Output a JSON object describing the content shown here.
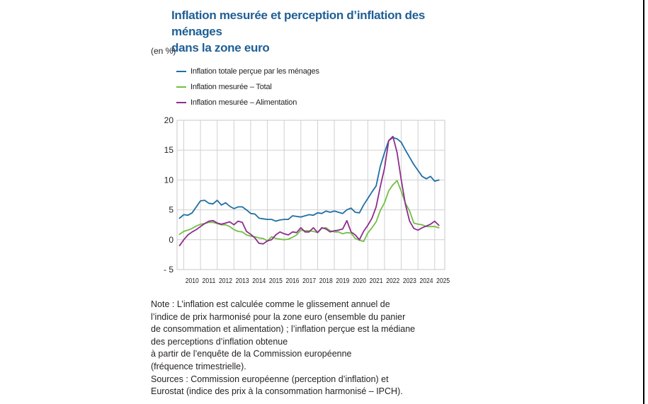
{
  "title_lines": [
    "Inflation mesurée et perception d’inflation des ménages",
    "dans la zone euro"
  ],
  "unit": "(en %)",
  "note_lines": [
    "Note : L’inflation est calculée comme le glissement annuel de",
    "l’indice de prix harmonisé pour la zone euro (ensemble du panier",
    "de consommation et alimentation) ; l’inflation perçue est la médiane",
    "des perceptions d’inflation obtenue",
    "à partir de l’enquête de la Commission européenne",
    "(fréquence trimestrielle).",
    "Sources : Commission européenne (perception d’inflation) et",
    "Eurostat (indice des prix à la consommation harmonisé – IPCH)."
  ],
  "chart_data": {
    "type": "line",
    "ylim": [
      -5,
      20
    ],
    "yticks": [
      20,
      15,
      10,
      5,
      0,
      -5
    ],
    "ytick_labels": [
      "20",
      "15",
      "10",
      "5",
      "0",
      "- 5"
    ],
    "xlim": [
      2009.6,
      2025.6
    ],
    "xtick_labels": [
      "2010",
      "2011",
      "2012",
      "2013",
      "2014",
      "2015",
      "2016",
      "2017",
      "2018",
      "2019",
      "2020",
      "2021",
      "2022",
      "2023",
      "2024",
      "2025"
    ],
    "grid": true,
    "legend_position": "top-left",
    "series": [
      {
        "name": "Inflation totale perçue par les ménages",
        "color": "#1f6fa3",
        "x": [
          2009.75,
          2010,
          2010.25,
          2010.5,
          2010.75,
          2011,
          2011.25,
          2011.5,
          2011.75,
          2012,
          2012.25,
          2012.5,
          2012.75,
          2013,
          2013.25,
          2013.5,
          2013.75,
          2014,
          2014.25,
          2014.5,
          2014.75,
          2015,
          2015.25,
          2015.5,
          2015.75,
          2016,
          2016.25,
          2016.5,
          2016.75,
          2017,
          2017.25,
          2017.5,
          2017.75,
          2018,
          2018.25,
          2018.5,
          2018.75,
          2019,
          2019.25,
          2019.5,
          2019.75,
          2020,
          2020.25,
          2020.5,
          2020.75,
          2021,
          2021.25,
          2021.5,
          2021.75,
          2022,
          2022.25,
          2022.5,
          2022.75,
          2023,
          2023.25,
          2023.5,
          2023.75,
          2024,
          2024.25,
          2024.5,
          2024.75,
          2025,
          2025.25
        ],
        "values": [
          3.6,
          4.2,
          4.1,
          4.5,
          5.5,
          6.5,
          6.6,
          6.1,
          6.0,
          6.6,
          5.8,
          6.2,
          5.6,
          5.2,
          5.5,
          5.5,
          5.0,
          4.4,
          4.3,
          3.6,
          3.5,
          3.4,
          3.4,
          3.1,
          3.3,
          3.4,
          3.4,
          4.0,
          3.9,
          3.8,
          4.0,
          4.2,
          4.1,
          4.5,
          4.4,
          4.8,
          4.6,
          4.8,
          4.6,
          4.4,
          5.0,
          5.3,
          4.6,
          4.5,
          5.8,
          6.9,
          8.0,
          9.0,
          12.3,
          14.6,
          16.6,
          17.1,
          16.9,
          16.3,
          15.0,
          13.8,
          12.6,
          11.6,
          10.6,
          10.2,
          10.6,
          9.8,
          10.0
        ]
      },
      {
        "name": "Inflation mesurée – Total",
        "color": "#72bf44",
        "x": [
          2009.75,
          2010,
          2010.25,
          2010.5,
          2010.75,
          2011,
          2011.25,
          2011.5,
          2011.75,
          2012,
          2012.25,
          2012.5,
          2012.75,
          2013,
          2013.25,
          2013.5,
          2013.75,
          2014,
          2014.25,
          2014.5,
          2014.75,
          2015,
          2015.25,
          2015.5,
          2015.75,
          2016,
          2016.25,
          2016.5,
          2016.75,
          2017,
          2017.25,
          2017.5,
          2017.75,
          2018,
          2018.25,
          2018.5,
          2018.75,
          2019,
          2019.25,
          2019.5,
          2019.75,
          2020,
          2020.25,
          2020.5,
          2020.75,
          2021,
          2021.25,
          2021.5,
          2021.75,
          2022,
          2022.25,
          2022.5,
          2022.75,
          2023,
          2023.25,
          2023.5,
          2023.75,
          2024,
          2024.25,
          2024.5,
          2024.75,
          2025,
          2025.25
        ],
        "values": [
          0.9,
          1.4,
          1.6,
          1.9,
          2.3,
          2.6,
          2.7,
          2.9,
          2.9,
          2.7,
          2.5,
          2.5,
          2.2,
          1.7,
          1.4,
          1.3,
          0.8,
          0.6,
          0.5,
          0.3,
          0.2,
          -0.2,
          0.5,
          0.2,
          0.1,
          0.0,
          0.1,
          0.4,
          0.8,
          1.6,
          1.5,
          1.5,
          1.4,
          1.2,
          1.9,
          2.0,
          1.5,
          1.3,
          1.3,
          1.0,
          1.2,
          1.1,
          0.2,
          -0.1,
          -0.3,
          1.1,
          2.0,
          3.0,
          4.9,
          6.2,
          8.2,
          9.2,
          9.9,
          8.1,
          6.1,
          4.8,
          2.8,
          2.6,
          2.5,
          2.2,
          2.2,
          2.2,
          2.0
        ]
      },
      {
        "name": "Inflation mesurée – Alimentation",
        "color": "#8e2d8e",
        "x": [
          2009.75,
          2010,
          2010.25,
          2010.5,
          2010.75,
          2011,
          2011.25,
          2011.5,
          2011.75,
          2012,
          2012.25,
          2012.5,
          2012.75,
          2013,
          2013.25,
          2013.5,
          2013.75,
          2014,
          2014.25,
          2014.5,
          2014.75,
          2015,
          2015.25,
          2015.5,
          2015.75,
          2016,
          2016.25,
          2016.5,
          2016.75,
          2017,
          2017.25,
          2017.5,
          2017.75,
          2018,
          2018.25,
          2018.5,
          2018.75,
          2019,
          2019.25,
          2019.5,
          2019.75,
          2020,
          2020.25,
          2020.5,
          2020.75,
          2021,
          2021.25,
          2021.5,
          2021.75,
          2022,
          2022.25,
          2022.5,
          2022.75,
          2023,
          2023.25,
          2023.5,
          2023.75,
          2024,
          2024.25,
          2024.5,
          2024.75,
          2025,
          2025.25
        ],
        "values": [
          -1.0,
          0.0,
          0.8,
          1.3,
          1.7,
          2.2,
          2.7,
          3.1,
          3.2,
          2.8,
          2.6,
          2.8,
          3.0,
          2.5,
          3.1,
          2.9,
          1.4,
          0.9,
          0.3,
          -0.6,
          -0.7,
          -0.2,
          0.0,
          0.8,
          1.3,
          1.0,
          0.8,
          1.3,
          1.2,
          2.0,
          1.3,
          1.3,
          2.0,
          1.2,
          2.0,
          1.8,
          1.3,
          1.5,
          1.6,
          1.8,
          3.2,
          1.3,
          0.8,
          0.0,
          1.4,
          2.4,
          3.6,
          5.5,
          8.9,
          12.0,
          16.6,
          17.3,
          14.6,
          10.0,
          5.9,
          3.1,
          1.9,
          1.6,
          2.0,
          2.3,
          2.6,
          3.1,
          2.4
        ]
      }
    ]
  }
}
